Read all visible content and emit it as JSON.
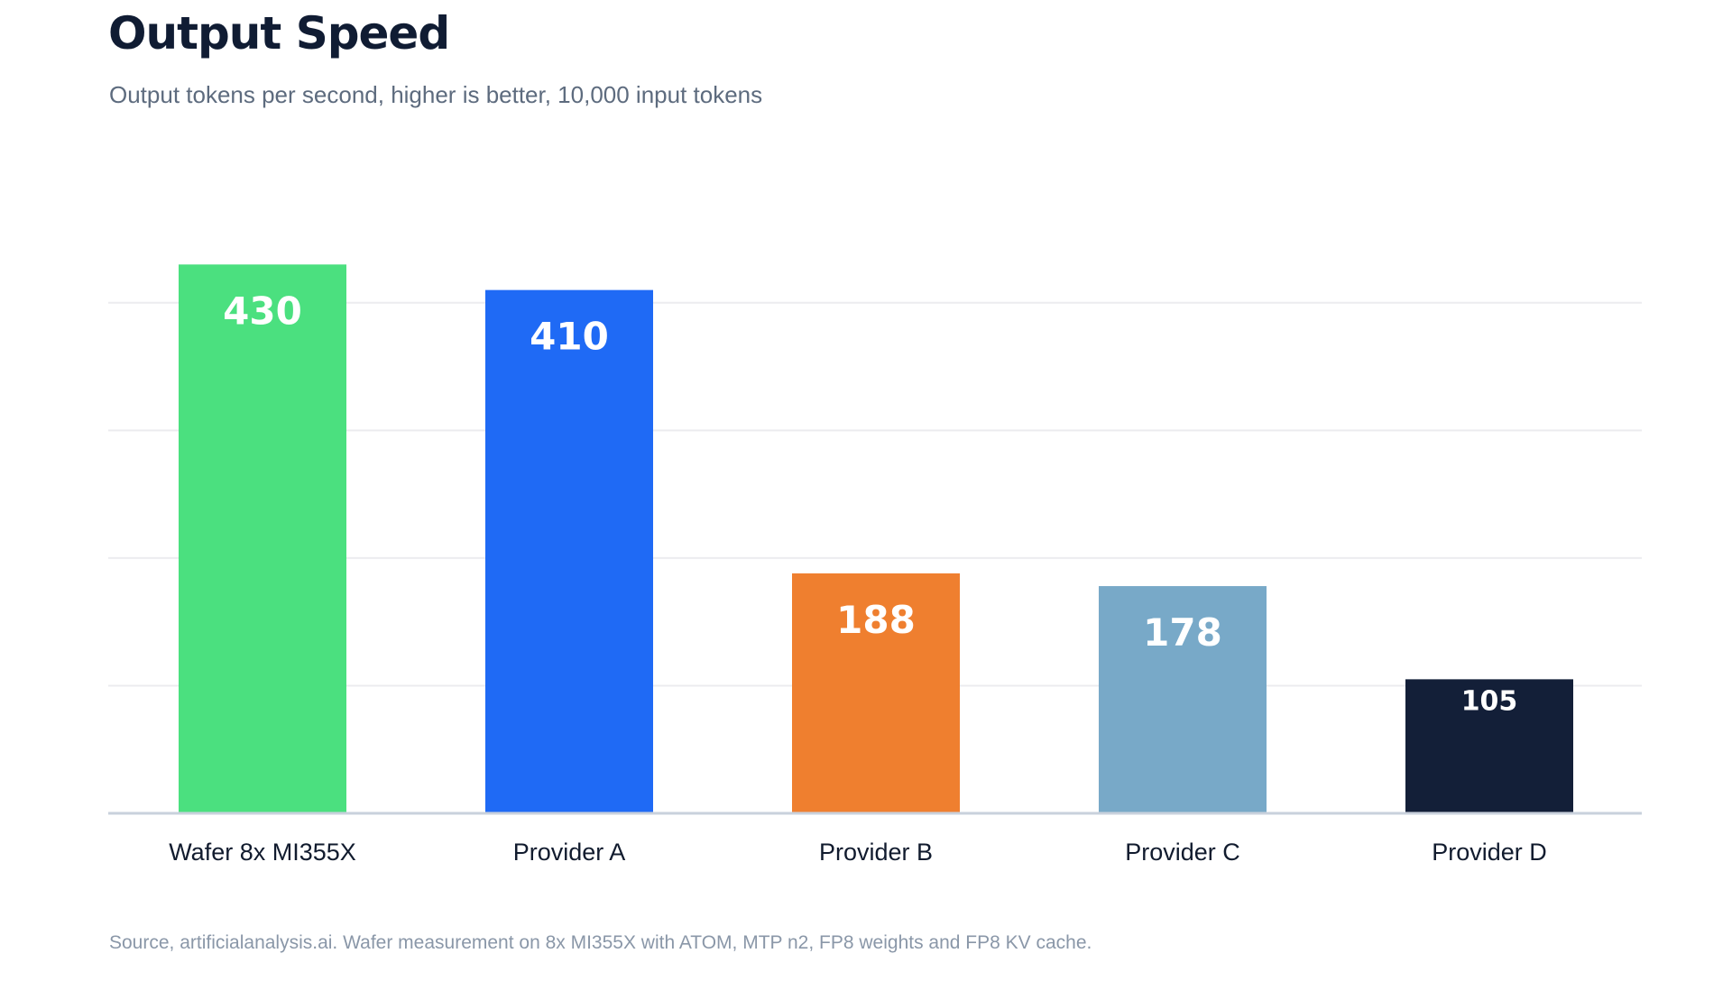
{
  "chart_data": {
    "type": "bar",
    "title": "Output Speed",
    "subtitle": "Output tokens per second, higher is better, 10,000 input tokens",
    "categories": [
      "Wafer 8x MI355X",
      "Provider A",
      "Provider B",
      "Provider C",
      "Provider D"
    ],
    "values": [
      430,
      410,
      188,
      178,
      105
    ],
    "value_labels": [
      "430",
      "410",
      "188",
      "178",
      "105"
    ],
    "colors": [
      "#4be07f",
      "#1f6af5",
      "#ef7f2f",
      "#78a9c8",
      "#131f38"
    ],
    "ylim": [
      0,
      480
    ],
    "gridlines": [
      100,
      200,
      300,
      400
    ],
    "grid": true,
    "legend": "none",
    "xlabel": "",
    "ylabel": "",
    "source": "Source, artificialanalysis.ai. Wafer measurement on 8x MI355X with ATOM, MTP n2, FP8 weights and FP8 KV cache."
  }
}
